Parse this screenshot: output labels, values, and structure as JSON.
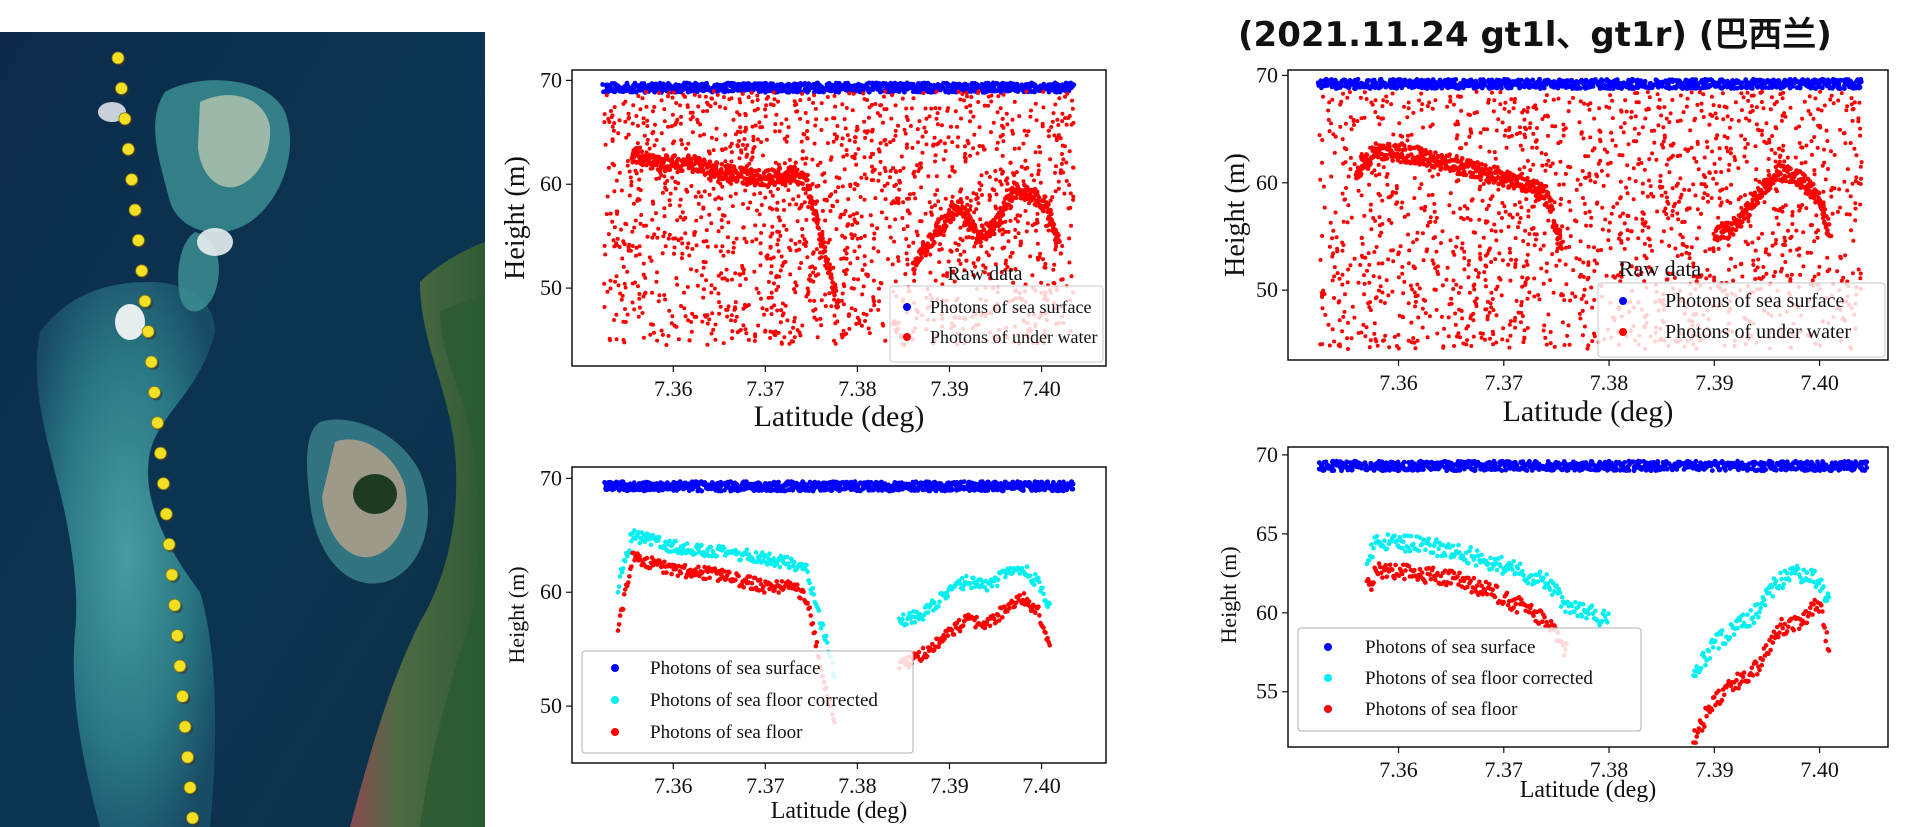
{
  "title": "(2021.11.24 gt1l、gt1r)  (巴西兰)",
  "map": {
    "track_points": 26,
    "marker_color": "#f3e024"
  },
  "colors": {
    "surface": "#0000ff",
    "floor_corrected": "#00f0f0",
    "floor": "#ff0000",
    "raw_under": "#ff0000"
  },
  "chart_data": [
    {
      "id": "raw-gt1l",
      "type": "scatter",
      "title": "",
      "xlabel": "Latitude (deg)",
      "ylabel": "Height (m)",
      "xlim": [
        7.349,
        7.407
      ],
      "ylim": [
        42.5,
        71
      ],
      "xticks": [
        "7.36",
        "7.37",
        "7.38",
        "7.39",
        "7.40"
      ],
      "yticks": [
        "50",
        "60",
        "70"
      ],
      "legend_title": "Raw data",
      "legend_position": "lower-right",
      "series": [
        {
          "name": "Photons of sea surface",
          "color": "#0000ff",
          "x_range": [
            7.3525,
            7.4035
          ],
          "y": 69.3
        },
        {
          "name": "Photons of under water",
          "color": "#ff0000",
          "noise_range": [
            44.5,
            69
          ],
          "profile": [
            [
              7.3555,
              63.0
            ],
            [
              7.358,
              62.0
            ],
            [
              7.362,
              62.0
            ],
            [
              7.366,
              61.0
            ],
            [
              7.37,
              60.5
            ],
            [
              7.373,
              61.0
            ],
            [
              7.3745,
              60.0
            ],
            [
              7.376,
              55.0
            ],
            [
              7.378,
              48.0
            ],
            [
              7.386,
              52.0
            ],
            [
              7.389,
              56.0
            ],
            [
              7.391,
              58.0
            ],
            [
              7.393,
              55.0
            ],
            [
              7.395,
              56.0
            ],
            [
              7.397,
              59.5
            ],
            [
              7.399,
              59.0
            ],
            [
              7.4005,
              58.0
            ],
            [
              7.402,
              54.0
            ]
          ]
        }
      ]
    },
    {
      "id": "raw-gt1r",
      "type": "scatter",
      "title": "",
      "xlabel": "Latitude (deg)",
      "ylabel": "Height (m)",
      "xlim": [
        7.3495,
        7.4065
      ],
      "ylim": [
        43.5,
        70.5
      ],
      "xticks": [
        "7.36",
        "7.37",
        "7.38",
        "7.39",
        "7.40"
      ],
      "yticks": [
        "50",
        "60",
        "70"
      ],
      "legend_title": "Raw data",
      "legend_position": "lower-right",
      "series": [
        {
          "name": "Photons of sea surface",
          "color": "#0000ff",
          "x_range": [
            7.3525,
            7.404
          ],
          "y": 69.2
        },
        {
          "name": "Photons of under water",
          "color": "#ff0000",
          "noise_range": [
            44.5,
            68.5
          ],
          "profile": [
            [
              7.356,
              61.0
            ],
            [
              7.358,
              63.0
            ],
            [
              7.362,
              62.5
            ],
            [
              7.366,
              61.5
            ],
            [
              7.37,
              60.5
            ],
            [
              7.374,
              59.0
            ],
            [
              7.3755,
              54.0
            ],
            [
              7.39,
              55.0
            ],
            [
              7.392,
              56.0
            ],
            [
              7.396,
              61.0
            ],
            [
              7.398,
              60.5
            ],
            [
              7.4,
              58.5
            ],
            [
              7.401,
              55.0
            ]
          ]
        }
      ]
    },
    {
      "id": "processed-gt1l",
      "type": "scatter",
      "title": "",
      "xlabel": "Latitude (deg)",
      "ylabel": "Height (m)",
      "xlim": [
        7.349,
        7.407
      ],
      "ylim": [
        45,
        71
      ],
      "xticks": [
        "7.36",
        "7.37",
        "7.38",
        "7.39",
        "7.40"
      ],
      "yticks": [
        "50",
        "60",
        "70"
      ],
      "legend_position": "lower-left",
      "series": [
        {
          "name": "Photons of sea surface",
          "color": "#0000ff",
          "x_range": [
            7.3525,
            7.4035
          ],
          "y": 69.3
        },
        {
          "name": "Photons of sea floor corrected",
          "color": "#00f0f0",
          "profile": [
            [
              7.354,
              60.5
            ],
            [
              7.3555,
              65.0
            ],
            [
              7.36,
              64.0
            ],
            [
              7.365,
              63.5
            ],
            [
              7.37,
              63.0
            ],
            [
              7.373,
              62.5
            ],
            [
              7.3745,
              62.0
            ],
            [
              7.376,
              57.5
            ],
            [
              7.3775,
              53.0
            ],
            [
              7.3845,
              57.5
            ],
            [
              7.387,
              58.0
            ],
            [
              7.39,
              60.0
            ],
            [
              7.392,
              61.0
            ],
            [
              7.394,
              60.5
            ],
            [
              7.396,
              61.5
            ],
            [
              7.398,
              62.0
            ],
            [
              7.3995,
              61.0
            ],
            [
              7.401,
              58.5
            ]
          ]
        },
        {
          "name": "Photons of sea floor",
          "color": "#ff0000",
          "profile": [
            [
              7.354,
              56.5
            ],
            [
              7.3555,
              63.0
            ],
            [
              7.36,
              62.0
            ],
            [
              7.365,
              61.5
            ],
            [
              7.37,
              60.5
            ],
            [
              7.373,
              60.5
            ],
            [
              7.3745,
              59.5
            ],
            [
              7.376,
              53.5
            ],
            [
              7.3775,
              48.5
            ],
            [
              7.3845,
              53.5
            ],
            [
              7.387,
              54.5
            ],
            [
              7.39,
              56.5
            ],
            [
              7.392,
              57.5
            ],
            [
              7.394,
              57.0
            ],
            [
              7.396,
              58.5
            ],
            [
              7.398,
              59.5
            ],
            [
              7.3995,
              58.5
            ],
            [
              7.401,
              55.5
            ]
          ]
        }
      ]
    },
    {
      "id": "processed-gt1r",
      "type": "scatter",
      "title": "",
      "xlabel": "Latitude (deg)",
      "ylabel": "Height (m)",
      "xlim": [
        7.3495,
        7.4065
      ],
      "ylim": [
        51.5,
        70.5
      ],
      "xticks": [
        "7.36",
        "7.37",
        "7.38",
        "7.39",
        "7.40"
      ],
      "yticks": [
        "55",
        "60",
        "65",
        "70"
      ],
      "legend_position": "lower-left",
      "series": [
        {
          "name": "Photons of sea surface",
          "color": "#0000ff",
          "x_range": [
            7.3525,
            7.4045
          ],
          "y": 69.3
        },
        {
          "name": "Photons of sea floor corrected",
          "color": "#00f0f0",
          "profile": [
            [
              7.357,
              63.5
            ],
            [
              7.358,
              64.5
            ],
            [
              7.362,
              64.3
            ],
            [
              7.366,
              63.8
            ],
            [
              7.37,
              63.0
            ],
            [
              7.374,
              62.0
            ],
            [
              7.376,
              60.5
            ],
            [
              7.38,
              59.5
            ],
            [
              7.388,
              56.0
            ],
            [
              7.39,
              58.0
            ],
            [
              7.392,
              59.0
            ],
            [
              7.394,
              60.0
            ],
            [
              7.396,
              62.0
            ],
            [
              7.398,
              62.5
            ],
            [
              7.4,
              62.0
            ],
            [
              7.401,
              60.5
            ]
          ]
        },
        {
          "name": "Photons of sea floor",
          "color": "#ff0000",
          "profile": [
            [
              7.357,
              61.5
            ],
            [
              7.358,
              62.7
            ],
            [
              7.362,
              62.5
            ],
            [
              7.366,
              62.0
            ],
            [
              7.37,
              61.0
            ],
            [
              7.374,
              59.5
            ],
            [
              7.376,
              57.5
            ],
            [
              7.388,
              52.0
            ],
            [
              7.39,
              54.5
            ],
            [
              7.392,
              55.5
            ],
            [
              7.394,
              56.5
            ],
            [
              7.396,
              59.0
            ],
            [
              7.398,
              59.5
            ],
            [
              7.4,
              60.5
            ],
            [
              7.401,
              57.5
            ]
          ]
        }
      ]
    }
  ]
}
